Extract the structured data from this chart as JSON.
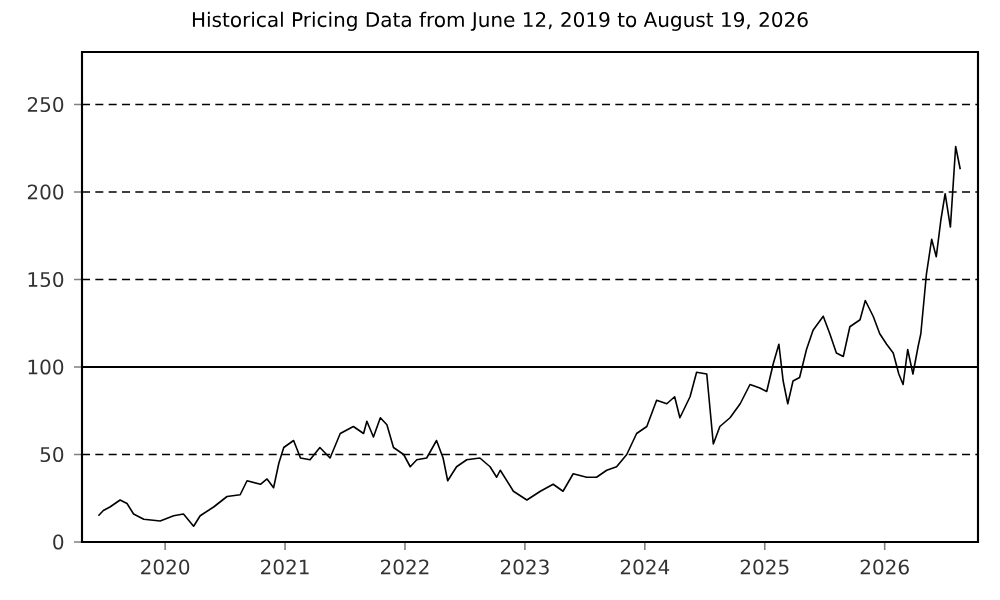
{
  "chart_data": {
    "type": "line",
    "title": "Historical Pricing Data from June 12, 2019 to August 19, 2026",
    "x": [
      "2019-06-12",
      "2019-06-27",
      "2019-07-17",
      "2019-08-17",
      "2019-09-07",
      "2019-09-27",
      "2019-10-28",
      "2019-12-17",
      "2020-01-27",
      "2020-02-26",
      "2020-03-28",
      "2020-04-17",
      "2020-05-28",
      "2020-07-08",
      "2020-08-17",
      "2020-09-07",
      "2020-10-18",
      "2020-11-07",
      "2020-11-27",
      "2020-12-13",
      "2020-12-28",
      "2021-01-27",
      "2021-02-17",
      "2021-03-18",
      "2021-04-17",
      "2021-05-18",
      "2021-06-18",
      "2021-07-28",
      "2021-08-28",
      "2021-09-07",
      "2021-09-27",
      "2021-10-18",
      "2021-11-07",
      "2021-11-27",
      "2021-12-28",
      "2022-01-17",
      "2022-02-06",
      "2022-03-08",
      "2022-04-07",
      "2022-04-27",
      "2022-05-11",
      "2022-06-07",
      "2022-07-08",
      "2022-08-17",
      "2022-09-17",
      "2022-10-07",
      "2022-10-18",
      "2022-11-27",
      "2023-01-07",
      "2023-02-17",
      "2023-03-28",
      "2023-04-27",
      "2023-05-28",
      "2023-07-08",
      "2023-08-07",
      "2023-09-07",
      "2023-10-07",
      "2023-11-07",
      "2023-12-07",
      "2024-01-07",
      "2024-02-06",
      "2024-03-08",
      "2024-04-01",
      "2024-04-17",
      "2024-05-18",
      "2024-06-07",
      "2024-07-08",
      "2024-07-28",
      "2024-08-17",
      "2024-09-17",
      "2024-10-18",
      "2024-11-17",
      "2024-12-17",
      "2025-01-07",
      "2025-01-27",
      "2025-02-13",
      "2025-02-26",
      "2025-03-12",
      "2025-03-28",
      "2025-04-17",
      "2025-05-08",
      "2025-05-28",
      "2025-06-28",
      "2025-07-18",
      "2025-08-07",
      "2025-08-28",
      "2025-09-17",
      "2025-10-18",
      "2025-11-03",
      "2025-11-27",
      "2025-12-17",
      "2026-01-07",
      "2026-01-27",
      "2026-02-13",
      "2026-02-26",
      "2026-03-12",
      "2026-03-28",
      "2026-04-13",
      "2026-04-21",
      "2026-05-08",
      "2026-05-24",
      "2026-06-07",
      "2026-06-21",
      "2026-07-04",
      "2026-07-20",
      "2026-08-05",
      "2026-08-19"
    ],
    "values": [
      15,
      18,
      20,
      24,
      22,
      16,
      13,
      12,
      15,
      16,
      9,
      15,
      20,
      26,
      27,
      35,
      33,
      36,
      31,
      45,
      54,
      58,
      48,
      47,
      54,
      48,
      62,
      66,
      62,
      69,
      60,
      71,
      67,
      54,
      50,
      43,
      47,
      48,
      58,
      48,
      35,
      43,
      47,
      48,
      43,
      37,
      41,
      29,
      24,
      29,
      33,
      29,
      39,
      37,
      37,
      41,
      43,
      50,
      62,
      66,
      81,
      79,
      83,
      71,
      83,
      97,
      96,
      56,
      66,
      71,
      79,
      90,
      88,
      86,
      102,
      113,
      92,
      79,
      92,
      94,
      110,
      121,
      129,
      119,
      108,
      106,
      123,
      127,
      138,
      129,
      119,
      113,
      108,
      96,
      90,
      110,
      96,
      112,
      119,
      153,
      173,
      163,
      184,
      199,
      180,
      226,
      213
    ],
    "color": "#000000",
    "xlim": [
      "2019-04-23",
      "2026-10-12"
    ],
    "xticks": [
      {
        "value": "2020",
        "label": "2020"
      },
      {
        "value": "2021",
        "label": "2021"
      },
      {
        "value": "2022",
        "label": "2022"
      },
      {
        "value": "2023",
        "label": "2023"
      },
      {
        "value": "2024",
        "label": "2024"
      },
      {
        "value": "2025",
        "label": "2025"
      },
      {
        "value": "2026",
        "label": "2026"
      }
    ],
    "ylim": [
      0,
      280
    ],
    "yticks": [
      0,
      50,
      100,
      150,
      200,
      250
    ],
    "grid": "y",
    "ref_lines": [
      {
        "axis": "y",
        "value": 100,
        "color": "#000000"
      }
    ]
  }
}
